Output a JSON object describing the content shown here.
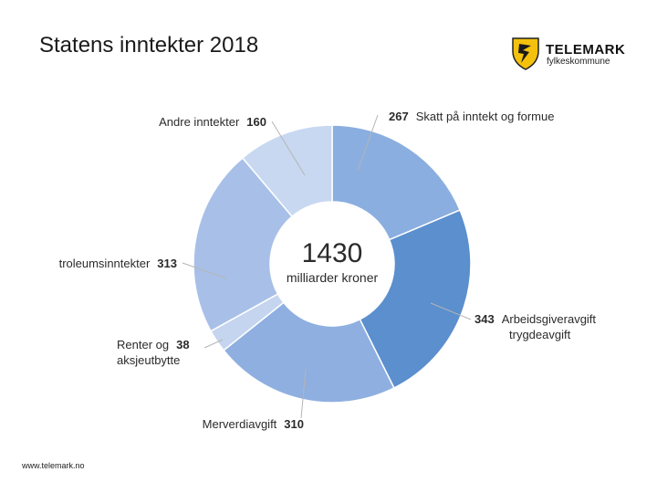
{
  "page": {
    "title": "Statens inntekter 2018",
    "footer_url": "www.telemark.no"
  },
  "logo": {
    "name": "TELEMARK",
    "subtitle": "fylkeskommune",
    "shield_color": "#f4c20d"
  },
  "chart_data": {
    "type": "pie",
    "variant": "donut",
    "center_total": "1430",
    "center_unit": "milliarder kroner",
    "slices": [
      {
        "label": "Skatt på inntekt og formue",
        "label_lines": [
          "Skatt på inntekt og formue"
        ],
        "value": 267,
        "color": "#8aaedf"
      },
      {
        "label": "Arbeidsgiveravgift trygdeavgift",
        "label_lines": [
          "Arbeidsgiveravgift",
          "trygdeavgift"
        ],
        "value": 343,
        "color": "#5b8fce"
      },
      {
        "label": "Merverdiavgift",
        "label_lines": [
          "Merverdiavgift"
        ],
        "value": 310,
        "color": "#8eafe0"
      },
      {
        "label": "Renter og aksjeutbytte",
        "label_lines": [
          "Renter og",
          "aksjeutbytte"
        ],
        "value": 38,
        "color": "#c5d5f0"
      },
      {
        "label": "troleumsinntekter",
        "label_lines": [
          "troleumsinntekter"
        ],
        "value": 313,
        "color": "#a8c0e8"
      },
      {
        "label": "Andre inntekter",
        "label_lines": [
          "Andre inntekter"
        ],
        "value": 160,
        "color": "#c8d8f1"
      }
    ]
  }
}
